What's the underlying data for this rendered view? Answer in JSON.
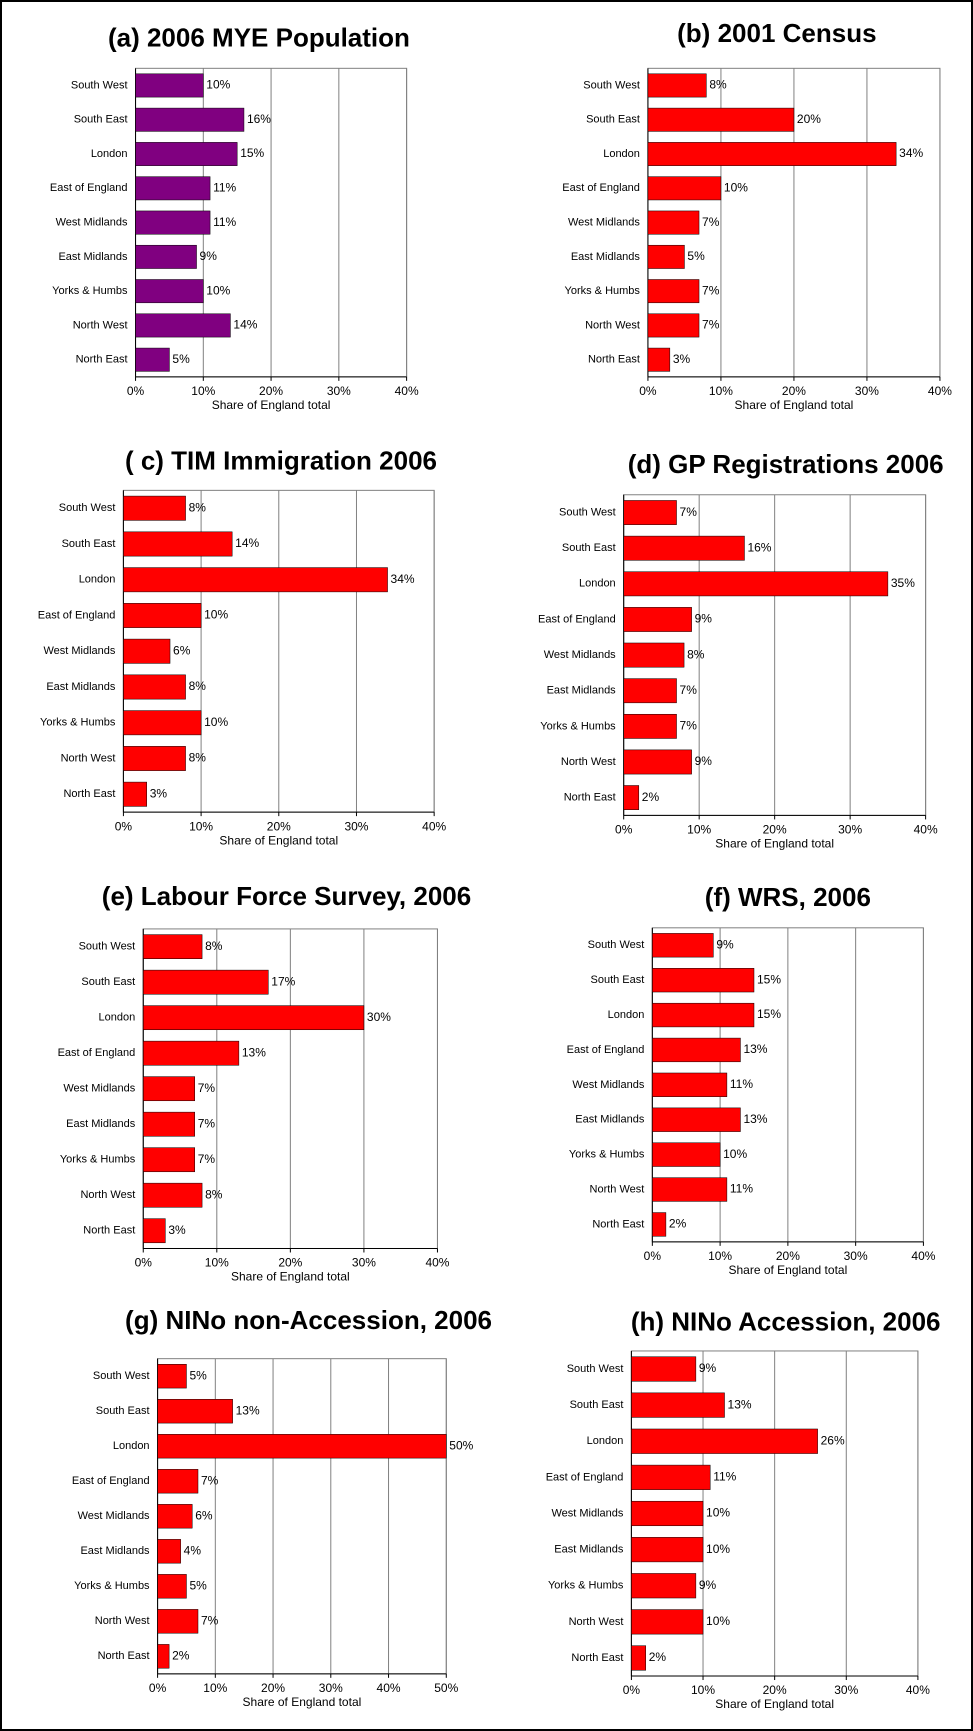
{
  "chart_data": [
    {
      "type": "bar",
      "orientation": "horizontal",
      "title": "(a) 2006 MYE Population",
      "xlabel": "Share of England total",
      "categories": [
        "South West",
        "South East",
        "London",
        "East of England",
        "West Midlands",
        "East Midlands",
        "Yorks & Humbs",
        "North West",
        "North East"
      ],
      "values": [
        10,
        16,
        15,
        11,
        11,
        9,
        10,
        14,
        5
      ],
      "value_labels": [
        "10%",
        "16%",
        "15%",
        "11%",
        "11%",
        "9%",
        "10%",
        "14%",
        "5%"
      ],
      "color": "#800080",
      "xlim": [
        0,
        40
      ],
      "xticks": [
        {
          "value": 0,
          "label": "0%"
        },
        {
          "value": 10,
          "label": "10%"
        },
        {
          "value": 20,
          "label": "20%"
        },
        {
          "value": 30,
          "label": "30%"
        },
        {
          "value": 40,
          "label": "40%"
        }
      ],
      "grid": true
    },
    {
      "type": "bar",
      "orientation": "horizontal",
      "title": "(b) 2001 Census",
      "xlabel": "Share of England total",
      "categories": [
        "South West",
        "South East",
        "London",
        "East of England",
        "West Midlands",
        "East Midlands",
        "Yorks & Humbs",
        "North West",
        "North East"
      ],
      "values": [
        8,
        20,
        34,
        10,
        7,
        5,
        7,
        7,
        3
      ],
      "value_labels": [
        "8%",
        "20%",
        "34%",
        "10%",
        "7%",
        "5%",
        "7%",
        "7%",
        "3%"
      ],
      "color": "#ff0000",
      "xlim": [
        0,
        40
      ],
      "xticks": [
        {
          "value": 0,
          "label": "0%"
        },
        {
          "value": 10,
          "label": "10%"
        },
        {
          "value": 20,
          "label": "20%"
        },
        {
          "value": 30,
          "label": "30%"
        },
        {
          "value": 40,
          "label": "40%"
        }
      ],
      "grid": true
    },
    {
      "type": "bar",
      "orientation": "horizontal",
      "title": "( c) TIM Immigration 2006",
      "xlabel": "Share of England total",
      "categories": [
        "South West",
        "South East",
        "London",
        "East of England",
        "West Midlands",
        "East Midlands",
        "Yorks & Humbs",
        "North West",
        "North East"
      ],
      "values": [
        8,
        14,
        34,
        10,
        6,
        8,
        10,
        8,
        3
      ],
      "value_labels": [
        "8%",
        "14%",
        "34%",
        "10%",
        "6%",
        "8%",
        "10%",
        "8%",
        "3%"
      ],
      "color": "#ff0000",
      "xlim": [
        0,
        40
      ],
      "xticks": [
        {
          "value": 0,
          "label": "0%"
        },
        {
          "value": 10,
          "label": "10%"
        },
        {
          "value": 20,
          "label": "20%"
        },
        {
          "value": 30,
          "label": "30%"
        },
        {
          "value": 40,
          "label": "40%"
        }
      ],
      "grid": true
    },
    {
      "type": "bar",
      "orientation": "horizontal",
      "title": "(d) GP Registrations 2006",
      "xlabel": "Share of England total",
      "categories": [
        "South West",
        "South East",
        "London",
        "East of England",
        "West Midlands",
        "East Midlands",
        "Yorks & Humbs",
        "North West",
        "North East"
      ],
      "values": [
        7,
        16,
        35,
        9,
        8,
        7,
        7,
        9,
        2
      ],
      "value_labels": [
        "7%",
        "16%",
        "35%",
        "9%",
        "8%",
        "7%",
        "7%",
        "9%",
        "2%"
      ],
      "color": "#ff0000",
      "xlim": [
        0,
        40
      ],
      "xticks": [
        {
          "value": 0,
          "label": "0%"
        },
        {
          "value": 10,
          "label": "10%"
        },
        {
          "value": 20,
          "label": "20%"
        },
        {
          "value": 30,
          "label": "30%"
        },
        {
          "value": 40,
          "label": "40%"
        }
      ],
      "grid": true
    },
    {
      "type": "bar",
      "orientation": "horizontal",
      "title": "(e) Labour Force Survey, 2006",
      "xlabel": "Share of England total",
      "categories": [
        "South West",
        "South East",
        "London",
        "East of England",
        "West Midlands",
        "East Midlands",
        "Yorks & Humbs",
        "North West",
        "North East"
      ],
      "values": [
        8,
        17,
        30,
        13,
        7,
        7,
        7,
        8,
        3
      ],
      "value_labels": [
        "8%",
        "17%",
        "30%",
        "13%",
        "7%",
        "7%",
        "7%",
        "8%",
        "3%"
      ],
      "color": "#ff0000",
      "xlim": [
        0,
        40
      ],
      "xticks": [
        {
          "value": 0,
          "label": "0%"
        },
        {
          "value": 10,
          "label": "10%"
        },
        {
          "value": 20,
          "label": "20%"
        },
        {
          "value": 30,
          "label": "30%"
        },
        {
          "value": 40,
          "label": "40%"
        }
      ],
      "grid": true
    },
    {
      "type": "bar",
      "orientation": "horizontal",
      "title": "(f) WRS, 2006",
      "xlabel": "Share of England total",
      "categories": [
        "South West",
        "South East",
        "London",
        "East of England",
        "West Midlands",
        "East Midlands",
        "Yorks & Humbs",
        "North West",
        "North East"
      ],
      "values": [
        9,
        15,
        15,
        13,
        11,
        13,
        10,
        11,
        2
      ],
      "value_labels": [
        "9%",
        "15%",
        "15%",
        "13%",
        "11%",
        "13%",
        "10%",
        "11%",
        "2%"
      ],
      "color": "#ff0000",
      "xlim": [
        0,
        40
      ],
      "xticks": [
        {
          "value": 0,
          "label": "0%"
        },
        {
          "value": 10,
          "label": "10%"
        },
        {
          "value": 20,
          "label": "20%"
        },
        {
          "value": 30,
          "label": "30%"
        },
        {
          "value": 40,
          "label": "40%"
        }
      ],
      "grid": true
    },
    {
      "type": "bar",
      "orientation": "horizontal",
      "title": "(g) NINo non-Accession, 2006",
      "xlabel": "Share of England total",
      "categories": [
        "South West",
        "South East",
        "London",
        "East of England",
        "West Midlands",
        "East Midlands",
        "Yorks & Humbs",
        "North West",
        "North East"
      ],
      "values": [
        5,
        13,
        50,
        7,
        6,
        4,
        5,
        7,
        2
      ],
      "value_labels": [
        "5%",
        "13%",
        "50%",
        "7%",
        "6%",
        "4%",
        "5%",
        "7%",
        "2%"
      ],
      "color": "#ff0000",
      "xlim": [
        0,
        50
      ],
      "xticks": [
        {
          "value": 0,
          "label": "0%"
        },
        {
          "value": 10,
          "label": "10%"
        },
        {
          "value": 20,
          "label": "20%"
        },
        {
          "value": 30,
          "label": "30%"
        },
        {
          "value": 40,
          "label": "40%"
        },
        {
          "value": 50,
          "label": "50%"
        }
      ],
      "grid": true
    },
    {
      "type": "bar",
      "orientation": "horizontal",
      "title": "(h) NINo Accession, 2006",
      "xlabel": "Share of England total",
      "categories": [
        "South West",
        "South East",
        "London",
        "East of England",
        "West Midlands",
        "East Midlands",
        "Yorks & Humbs",
        "North West",
        "North East"
      ],
      "values": [
        9,
        13,
        26,
        11,
        10,
        10,
        9,
        10,
        2
      ],
      "value_labels": [
        "9%",
        "13%",
        "26%",
        "11%",
        "10%",
        "10%",
        "9%",
        "10%",
        "2%"
      ],
      "color": "#ff0000",
      "xlim": [
        0,
        40
      ],
      "xticks": [
        {
          "value": 0,
          "label": "0%"
        },
        {
          "value": 10,
          "label": "10%"
        },
        {
          "value": 20,
          "label": "20%"
        },
        {
          "value": 30,
          "label": "30%"
        },
        {
          "value": 40,
          "label": "40%"
        }
      ],
      "grid": true
    }
  ]
}
